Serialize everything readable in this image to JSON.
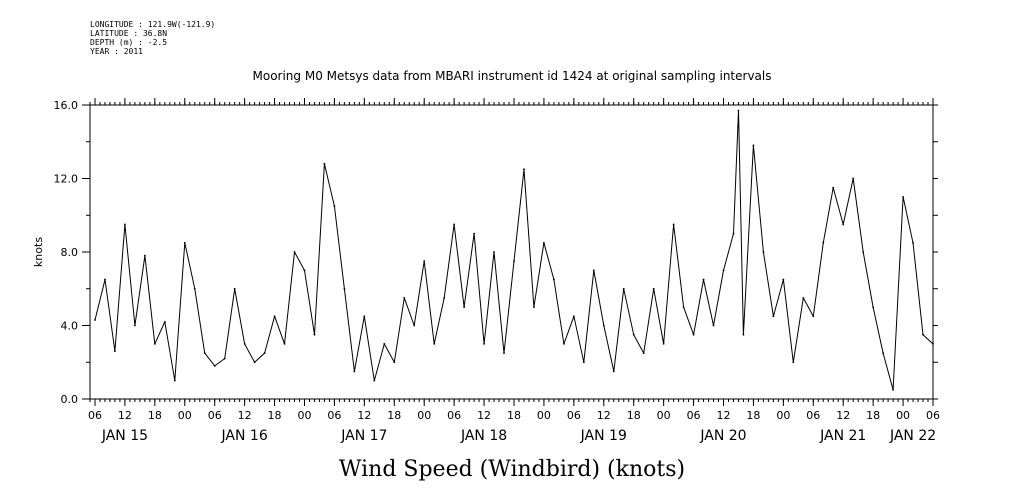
{
  "header": {
    "longitude": "LONGITUDE : 121.9W(-121.9)",
    "latitude": "LATITUDE : 36.8N",
    "depth": "DEPTH (m) : -2.5",
    "year": "YEAR : 2011"
  },
  "chart_data": {
    "type": "line",
    "title": "Mooring M0 Metsys data from MBARI instrument id 1424 at original sampling intervals",
    "xlabel": "Wind Speed (Windbird) (knots)",
    "ylabel": "knots",
    "ylim": [
      0,
      16
    ],
    "xlim_hours_from_jan15_00": [
      5,
      174
    ],
    "yticks": [
      "0.0",
      "4.0",
      "8.0",
      "12.0",
      "16.0"
    ],
    "x_hour_ticks": [
      "06",
      "12",
      "18",
      "00",
      "06",
      "12",
      "18",
      "00",
      "06",
      "12",
      "18",
      "00",
      "06",
      "12",
      "18",
      "00",
      "06",
      "12",
      "18",
      "00",
      "06",
      "12",
      "18",
      "00",
      "06",
      "12",
      "18",
      "00",
      "06"
    ],
    "x_day_labels": [
      "JAN 15",
      "JAN 16",
      "JAN 17",
      "JAN 18",
      "JAN 19",
      "JAN 20",
      "JAN 21",
      "JAN 22"
    ],
    "grid": false,
    "series": [
      {
        "name": "",
        "color": "#000000",
        "times": [
          "Jan 15 06:00",
          "Jan 15 08:00",
          "Jan 15 10:00",
          "Jan 15 12:00",
          "Jan 15 14:00",
          "Jan 15 16:00",
          "Jan 15 18:00",
          "Jan 15 20:00",
          "Jan 15 22:00",
          "Jan 16 00:00",
          "Jan 16 02:00",
          "Jan 16 04:00",
          "Jan 16 06:00",
          "Jan 16 08:00",
          "Jan 16 10:00",
          "Jan 16 12:00",
          "Jan 16 14:00",
          "Jan 16 16:00",
          "Jan 16 18:00",
          "Jan 16 20:00",
          "Jan 16 22:00",
          "Jan 17 00:00",
          "Jan 17 02:00",
          "Jan 17 04:00",
          "Jan 17 06:00",
          "Jan 17 08:00",
          "Jan 17 10:00",
          "Jan 17 12:00",
          "Jan 17 14:00",
          "Jan 17 16:00",
          "Jan 17 18:00",
          "Jan 17 20:00",
          "Jan 17 22:00",
          "Jan 18 00:00",
          "Jan 18 02:00",
          "Jan 18 04:00",
          "Jan 18 06:00",
          "Jan 18 08:00",
          "Jan 18 10:00",
          "Jan 18 12:00",
          "Jan 18 14:00",
          "Jan 18 16:00",
          "Jan 18 18:00",
          "Jan 18 20:00",
          "Jan 18 22:00",
          "Jan 19 00:00",
          "Jan 19 02:00",
          "Jan 19 04:00",
          "Jan 19 06:00",
          "Jan 19 08:00",
          "Jan 19 10:00",
          "Jan 19 12:00",
          "Jan 19 14:00",
          "Jan 19 16:00",
          "Jan 19 18:00",
          "Jan 19 20:00",
          "Jan 19 22:00",
          "Jan 20 00:00",
          "Jan 20 02:00",
          "Jan 20 04:00",
          "Jan 20 06:00",
          "Jan 20 08:00",
          "Jan 20 10:00",
          "Jan 20 12:00",
          "Jan 20 14:00",
          "Jan 20 15:00",
          "Jan 20 16:00",
          "Jan 20 18:00",
          "Jan 20 20:00",
          "Jan 20 22:00",
          "Jan 21 00:00",
          "Jan 21 02:00",
          "Jan 21 04:00",
          "Jan 21 06:00",
          "Jan 21 08:00",
          "Jan 21 10:00",
          "Jan 21 12:00",
          "Jan 21 14:00",
          "Jan 21 16:00",
          "Jan 21 18:00",
          "Jan 21 20:00",
          "Jan 21 22:00",
          "Jan 22 00:00",
          "Jan 22 02:00",
          "Jan 22 04:00",
          "Jan 22 06:00"
        ],
        "values": [
          4.3,
          6.5,
          2.6,
          9.5,
          4.0,
          7.8,
          3.0,
          4.2,
          1.0,
          8.5,
          6.0,
          2.5,
          1.8,
          2.2,
          6.0,
          3.0,
          2.0,
          2.5,
          4.5,
          3.0,
          8.0,
          7.0,
          3.5,
          12.8,
          10.5,
          6.0,
          1.5,
          4.5,
          1.0,
          3.0,
          2.0,
          5.5,
          4.0,
          7.5,
          3.0,
          5.5,
          9.5,
          5.0,
          9.0,
          3.0,
          8.0,
          2.5,
          7.5,
          12.5,
          5.0,
          8.5,
          6.5,
          3.0,
          4.5,
          2.0,
          7.0,
          4.0,
          1.5,
          6.0,
          3.5,
          2.5,
          6.0,
          3.0,
          9.5,
          5.0,
          3.5,
          6.5,
          4.0,
          7.0,
          9.0,
          15.7,
          3.5,
          13.8,
          8.0,
          4.5,
          6.5,
          2.0,
          5.5,
          4.5,
          8.5,
          11.5,
          9.5,
          12.0,
          8.0,
          5.0,
          2.5,
          0.5,
          11.0,
          8.5,
          3.5,
          3.0
        ]
      }
    ]
  }
}
